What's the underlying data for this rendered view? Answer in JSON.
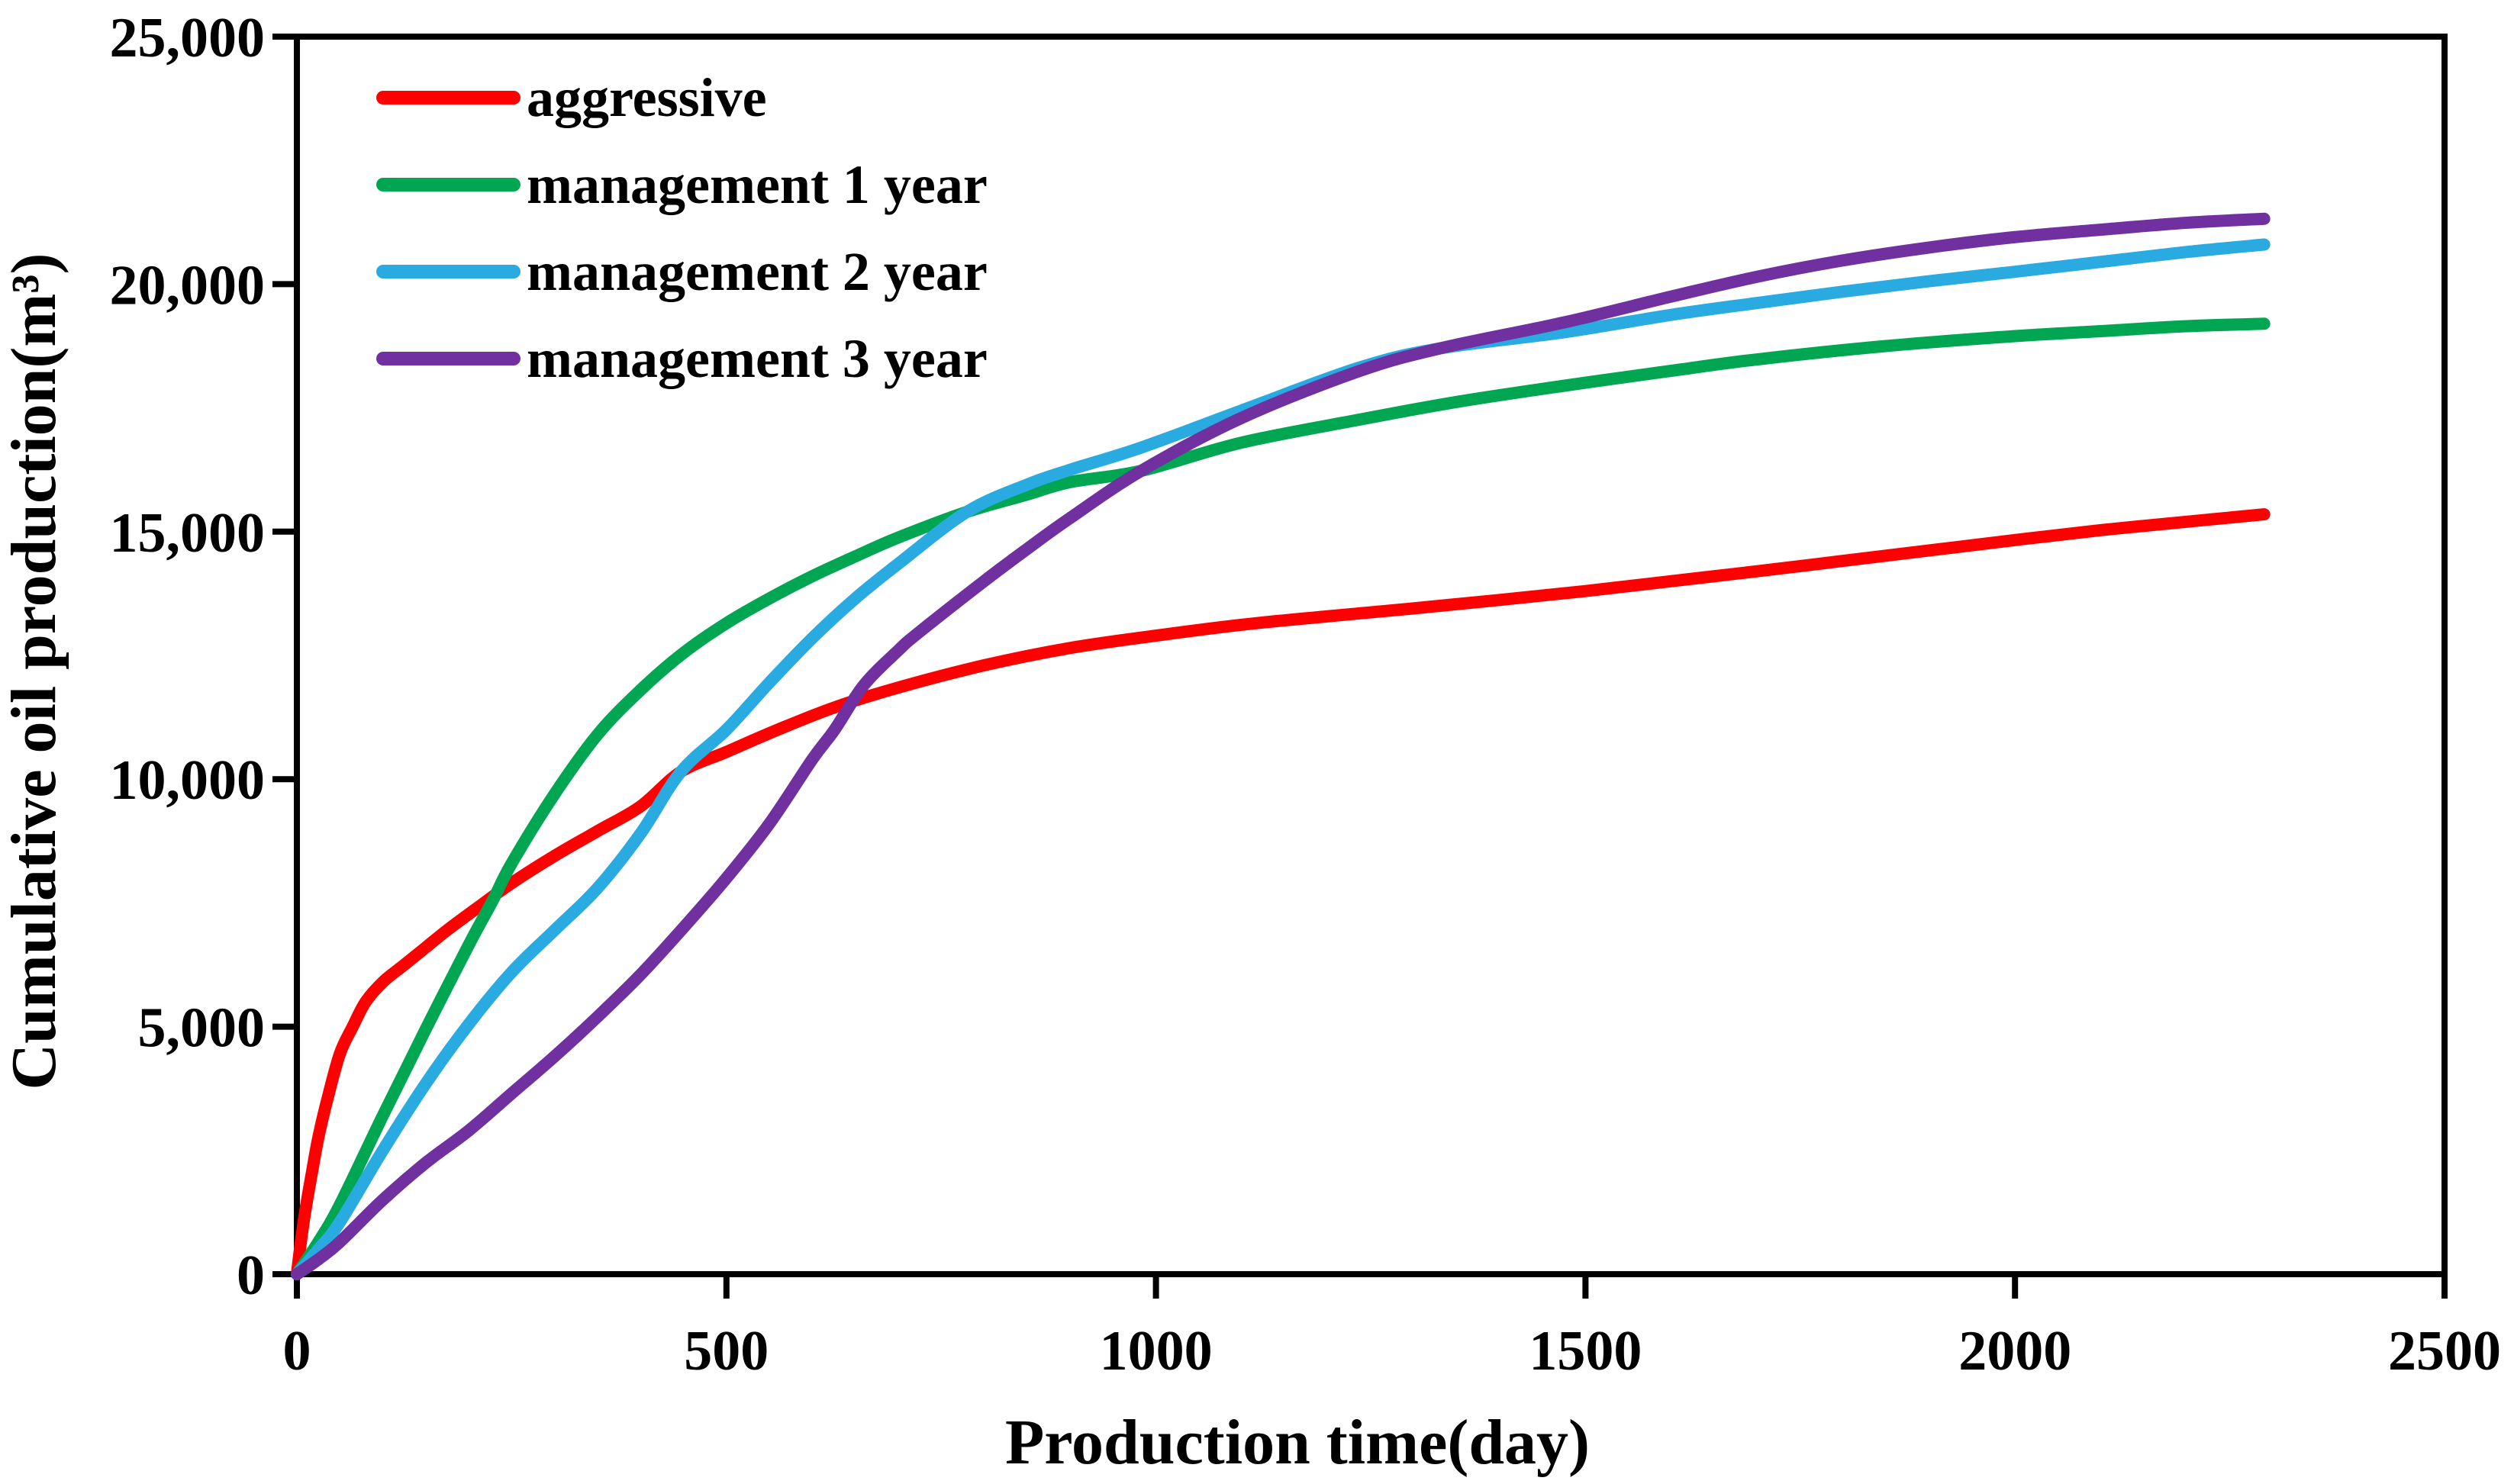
{
  "chart_data": {
    "type": "line",
    "title": "",
    "xlabel": "Production time(day)",
    "ylabel": "Cumulative oil production(m³)",
    "xlim": [
      0,
      2500
    ],
    "ylim": [
      0,
      25000
    ],
    "grid": false,
    "legend_position": "top-left-inside",
    "background": "#ffffff",
    "axis_color": "#000000",
    "x_ticks": [
      0,
      500,
      1000,
      1500,
      2000,
      2500
    ],
    "x_tick_labels": [
      "0",
      "500",
      "1000",
      "1500",
      "2000",
      "2500"
    ],
    "y_ticks": [
      0,
      5000,
      10000,
      15000,
      20000,
      25000
    ],
    "y_tick_labels": [
      "0",
      "5,000",
      "10,000",
      "15,000",
      "20,000",
      "25,000"
    ],
    "series": [
      {
        "name": "aggressive",
        "color": "#FE0000",
        "points": [
          [
            0,
            0
          ],
          [
            5,
            700
          ],
          [
            10,
            1300
          ],
          [
            18,
            2100
          ],
          [
            25,
            2760
          ],
          [
            35,
            3500
          ],
          [
            50,
            4450
          ],
          [
            65,
            5000
          ],
          [
            80,
            5500
          ],
          [
            100,
            5900
          ],
          [
            125,
            6250
          ],
          [
            150,
            6600
          ],
          [
            175,
            6950
          ],
          [
            210,
            7400
          ],
          [
            250,
            7900
          ],
          [
            300,
            8450
          ],
          [
            350,
            8950
          ],
          [
            400,
            9450
          ],
          [
            447,
            10150
          ],
          [
            500,
            10550
          ],
          [
            560,
            11000
          ],
          [
            626,
            11450
          ],
          [
            700,
            11850
          ],
          [
            800,
            12300
          ],
          [
            900,
            12650
          ],
          [
            1000,
            12900
          ],
          [
            1100,
            13120
          ],
          [
            1200,
            13290
          ],
          [
            1300,
            13450
          ],
          [
            1400,
            13620
          ],
          [
            1500,
            13800
          ],
          [
            1600,
            14000
          ],
          [
            1700,
            14200
          ],
          [
            1800,
            14410
          ],
          [
            1900,
            14620
          ],
          [
            2000,
            14830
          ],
          [
            2100,
            15030
          ],
          [
            2200,
            15200
          ],
          [
            2290,
            15350
          ]
        ]
      },
      {
        "name": "management 1 year",
        "color": "#00A651",
        "points": [
          [
            0,
            0
          ],
          [
            25,
            650
          ],
          [
            50,
            1400
          ],
          [
            100,
            3200
          ],
          [
            150,
            4950
          ],
          [
            200,
            6650
          ],
          [
            228,
            7550
          ],
          [
            250,
            8300
          ],
          [
            300,
            9700
          ],
          [
            350,
            10900
          ],
          [
            400,
            11800
          ],
          [
            450,
            12550
          ],
          [
            500,
            13150
          ],
          [
            550,
            13650
          ],
          [
            600,
            14100
          ],
          [
            650,
            14500
          ],
          [
            700,
            14880
          ],
          [
            780,
            15400
          ],
          [
            850,
            15750
          ],
          [
            900,
            16000
          ],
          [
            983,
            16230
          ],
          [
            1100,
            16800
          ],
          [
            1236,
            17260
          ],
          [
            1350,
            17620
          ],
          [
            1476,
            17950
          ],
          [
            1600,
            18250
          ],
          [
            1700,
            18480
          ],
          [
            1850,
            18750
          ],
          [
            2000,
            18950
          ],
          [
            2100,
            19050
          ],
          [
            2200,
            19150
          ],
          [
            2290,
            19200
          ]
        ]
      },
      {
        "name": "management 2 year",
        "color": "#29ABE2",
        "points": [
          [
            0,
            0
          ],
          [
            25,
            500
          ],
          [
            50,
            1050
          ],
          [
            100,
            2500
          ],
          [
            150,
            3850
          ],
          [
            200,
            5050
          ],
          [
            250,
            6100
          ],
          [
            300,
            6950
          ],
          [
            350,
            7800
          ],
          [
            400,
            8900
          ],
          [
            447,
            10150
          ],
          [
            500,
            11000
          ],
          [
            550,
            11950
          ],
          [
            600,
            12850
          ],
          [
            650,
            13650
          ],
          [
            700,
            14350
          ],
          [
            780,
            15400
          ],
          [
            850,
            15950
          ],
          [
            900,
            16250
          ],
          [
            983,
            16700
          ],
          [
            1100,
            17450
          ],
          [
            1236,
            18310
          ],
          [
            1330,
            18700
          ],
          [
            1476,
            19030
          ],
          [
            1600,
            19380
          ],
          [
            1700,
            19620
          ],
          [
            1800,
            19850
          ],
          [
            1900,
            20060
          ],
          [
            2000,
            20250
          ],
          [
            2100,
            20450
          ],
          [
            2200,
            20650
          ],
          [
            2290,
            20800
          ]
        ]
      },
      {
        "name": "management 3 year",
        "color": "#7030A0",
        "points": [
          [
            0,
            0
          ],
          [
            25,
            300
          ],
          [
            50,
            650
          ],
          [
            100,
            1500
          ],
          [
            150,
            2250
          ],
          [
            200,
            2900
          ],
          [
            250,
            3650
          ],
          [
            300,
            4400
          ],
          [
            350,
            5200
          ],
          [
            400,
            6050
          ],
          [
            450,
            7000
          ],
          [
            500,
            8000
          ],
          [
            550,
            9100
          ],
          [
            600,
            10400
          ],
          [
            626,
            11000
          ],
          [
            660,
            11900
          ],
          [
            700,
            12600
          ],
          [
            723,
            12950
          ],
          [
            800,
            14000
          ],
          [
            850,
            14650
          ],
          [
            898,
            15250
          ],
          [
            983,
            16230
          ],
          [
            1100,
            17300
          ],
          [
            1236,
            18240
          ],
          [
            1330,
            18700
          ],
          [
            1476,
            19230
          ],
          [
            1600,
            19750
          ],
          [
            1700,
            20150
          ],
          [
            1800,
            20480
          ],
          [
            1900,
            20740
          ],
          [
            2000,
            20950
          ],
          [
            2100,
            21100
          ],
          [
            2200,
            21240
          ],
          [
            2290,
            21320
          ]
        ]
      }
    ]
  }
}
